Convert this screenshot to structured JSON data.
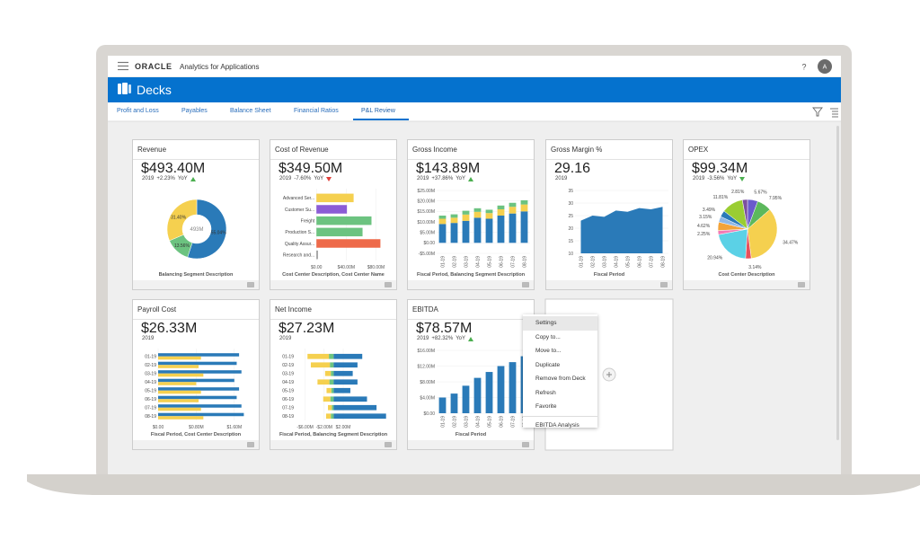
{
  "header": {
    "product_brand": "ORACLE",
    "product_name": "Analytics for Applications",
    "help": "?",
    "user_initial": "A"
  },
  "page_title": "Decks",
  "tabs": {
    "items": [
      "Profit and Loss",
      "Payables",
      "Balance Sheet",
      "Financial Ratios",
      "P&L Review"
    ],
    "active": 4
  },
  "cards": [
    {
      "title": "Revenue",
      "value": "$493.40M",
      "year": "2019",
      "change": "+2.23%",
      "change_label": "YoY",
      "trend": "up",
      "trend_color": "#4caf50",
      "axis_label": "Balancing Segment Description",
      "chart": {
        "type": "donut",
        "values": [
          55.04,
          13.56,
          31.4
        ],
        "value_labels": [
          "55.04%",
          "13.56%",
          "31.40%"
        ],
        "colors": [
          "#2a7ab8",
          "#6cc380",
          "#f5d04f"
        ],
        "center_label": "493M"
      }
    },
    {
      "title": "Cost of Revenue",
      "value": "$349.50M",
      "year": "2019",
      "change": "-7.60%",
      "change_label": "YoY",
      "trend": "down",
      "trend_color": "#e0403a",
      "axis_label": "Cost Center Description, Cost Center Name",
      "chart": {
        "type": "hbar",
        "categories": [
          "Advanced Ser...",
          "Customer Su...",
          "Freight",
          "Production S...",
          "Quality Assur...",
          "Research and..."
        ],
        "values": [
          50000000,
          41000000,
          74000000,
          62000000,
          86000000,
          2000000
        ],
        "colors": [
          "#f5d04f",
          "#8b5cd6",
          "#6cc380",
          "#6cc380",
          "#ee6a4a",
          "#999999"
        ],
        "xlim": [
          0,
          100000000
        ],
        "xticks": [
          {
            "value": 0,
            "label": "$0.00"
          },
          {
            "value": 40000000,
            "label": "$40.00M"
          },
          {
            "value": 80000000,
            "label": "$80.00M"
          }
        ]
      }
    },
    {
      "title": "Gross Income",
      "value": "$143.89M",
      "year": "2019",
      "change": "+37.86%",
      "change_label": "YoY",
      "trend": "up",
      "trend_color": "#4caf50",
      "axis_label": "Fiscal Period, Balancing Segment Description",
      "chart": {
        "type": "column",
        "stacked": true,
        "categories": [
          "01-19",
          "02-19",
          "03-19",
          "04-19",
          "05-19",
          "06-19",
          "07-19",
          "08-19"
        ],
        "series": [
          {
            "color": "#2a7ab8",
            "values": [
              9000000,
              9500000,
              10500000,
              12000000,
              11500000,
              13000000,
              14000000,
              15000000
            ]
          },
          {
            "color": "#f5d04f",
            "values": [
              2500000,
              2500000,
              3000000,
              2800000,
              2700000,
              3000000,
              3200000,
              3300000
            ]
          },
          {
            "color": "#6cc380",
            "values": [
              1500000,
              1600000,
              1800000,
              1700000,
              1600000,
              1800000,
              1900000,
              2000000
            ]
          }
        ],
        "ylim": [
          -5000000,
          25000000
        ],
        "yticks": [
          {
            "value": -5000000,
            "label": "-$5.00M"
          },
          {
            "value": 0,
            "label": "$0.00"
          },
          {
            "value": 5000000,
            "label": "$5.00M"
          },
          {
            "value": 10000000,
            "label": "$10.00M"
          },
          {
            "value": 15000000,
            "label": "$15.00M"
          },
          {
            "value": 20000000,
            "label": "$20.00M"
          },
          {
            "value": 25000000,
            "label": "$25.00M"
          }
        ]
      }
    },
    {
      "title": "Gross Margin %",
      "value": "29.16",
      "year": "2019",
      "axis_label": "Fiscal Period",
      "chart": {
        "type": "area",
        "categories": [
          "01-19",
          "02-19",
          "03-19",
          "04-19",
          "05-19",
          "06-19",
          "07-19",
          "08-19"
        ],
        "values": [
          23,
          25,
          24.5,
          27,
          26.5,
          28,
          27.5,
          28.5
        ],
        "color": "#2a7ab8",
        "ylim": [
          10,
          35
        ],
        "yticks": [
          10,
          15,
          20,
          25,
          30,
          35
        ]
      }
    },
    {
      "title": "OPEX",
      "value": "$99.34M",
      "year": "2019",
      "change": "-3.56%",
      "change_label": "YoY",
      "trend": "down",
      "trend_color": "#4caf50",
      "axis_label": "Cost Center Description",
      "chart": {
        "type": "pie",
        "values": [
          5.67,
          7.95,
          34.47,
          3.14,
          20.94,
          2.25,
          4.62,
          3.15,
          3.49,
          11.81,
          2.81
        ],
        "value_labels": [
          "5.67%",
          "7.95%",
          "34.47%",
          "3.14%",
          "20.94%",
          "2.25%",
          "4.62%",
          "3.15%",
          "3.49%",
          "11.81%",
          "2.81%"
        ],
        "colors": [
          "#6a5acd",
          "#5cb85c",
          "#f5d04f",
          "#e8505b",
          "#5bd1e6",
          "#f27bb5",
          "#f2a33a",
          "#8fb8e8",
          "#2a7ab8",
          "#9acd32",
          "#7b4fa0"
        ]
      }
    },
    {
      "title": "Payroll Cost",
      "value": "$26.33M",
      "year": "2019",
      "axis_label": "Fiscal Period, Cost Center Description",
      "chart": {
        "type": "hbar",
        "categories": [
          "01-19",
          "02-19",
          "03-19",
          "04-19",
          "05-19",
          "06-19",
          "07-19",
          "08-19"
        ],
        "series": [
          {
            "color": "#2a7ab8",
            "values": [
              1700000,
              1650000,
              1750000,
              1600000,
              1700000,
              1650000,
              1750000,
              1800000
            ]
          },
          {
            "color": "#f5d04f",
            "values": [
              900000,
              850000,
              950000,
              800000,
              900000,
              850000,
              900000,
              950000
            ]
          }
        ],
        "xlim": [
          0,
          2000000
        ],
        "xticks": [
          {
            "value": 0,
            "label": "$0.00"
          },
          {
            "value": 800000,
            "label": "$0.80M"
          },
          {
            "value": 1600000,
            "label": "$1.60M"
          }
        ]
      }
    },
    {
      "title": "Net Income",
      "value": "$27.23M",
      "year": "2019",
      "axis_label": "Fiscal Period, Balancing Segment Description",
      "chart": {
        "type": "hbar",
        "stacked": true,
        "categories": [
          "01-19",
          "02-19",
          "03-19",
          "04-19",
          "05-19",
          "06-19",
          "07-19",
          "08-19"
        ],
        "series": [
          {
            "color": "#6cc380",
            "values": [
              -1000000,
              -800000,
              -600000,
              -900000,
              -500000,
              -700000,
              -400000,
              -600000
            ]
          },
          {
            "color": "#f5d04f",
            "values": [
              -4500000,
              -4000000,
              -1200000,
              -2500000,
              -1000000,
              -1500000,
              -800000,
              -1000000
            ]
          },
          {
            "color": "#2a7ab8",
            "values": [
              6000000,
              5000000,
              4000000,
              5000000,
              3500000,
              7000000,
              9000000,
              11000000
            ]
          }
        ],
        "xlim": [
          -8000000,
          12000000
        ],
        "xticks": [
          {
            "value": -6000000,
            "label": "-$6.00M"
          },
          {
            "value": -2000000,
            "label": "-$2.00M"
          },
          {
            "value": 2000000,
            "label": "$2.00M"
          }
        ]
      }
    },
    {
      "title": "EBITDA",
      "value": "$78.57M",
      "year": "2019",
      "change": "+82.32%",
      "change_label": "YoY",
      "trend": "up",
      "trend_color": "#4caf50",
      "axis_label": "Fiscal Period",
      "chart": {
        "type": "column",
        "categories": [
          "01-19",
          "02-19",
          "03-19",
          "04-19",
          "05-19",
          "06-19",
          "07-19",
          "08-19"
        ],
        "values": [
          4000000,
          5000000,
          7000000,
          9000000,
          10500000,
          12000000,
          13000000,
          14500000
        ],
        "color": "#2a7ab8",
        "ylim": [
          0,
          16000000
        ],
        "yticks": [
          {
            "value": 0,
            "label": "$0.00"
          },
          {
            "value": 4000000,
            "label": "$4.00M"
          },
          {
            "value": 8000000,
            "label": "$8.00M"
          },
          {
            "value": 12000000,
            "label": "$12.00M"
          },
          {
            "value": 16000000,
            "label": "$16.00M"
          }
        ]
      }
    }
  ],
  "context_menu": {
    "items": [
      "Settings",
      "Copy to...",
      "Move to...",
      "Duplicate",
      "Remove from Deck",
      "Refresh",
      "Favorite",
      "EBITDA Analysis"
    ],
    "highlighted": 0,
    "separator_before": 7
  }
}
